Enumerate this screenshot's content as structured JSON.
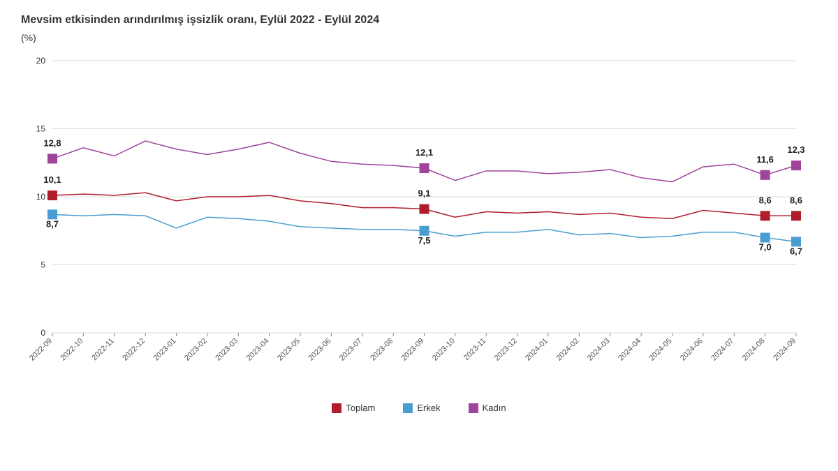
{
  "chart": {
    "type": "line",
    "title": "Mevsim etkisinden arındırılmış işsizlik oranı, Eylül 2022 - Eylül 2024",
    "unit": "(%)",
    "title_fontsize": 16,
    "title_color": "#333333",
    "unit_fontsize": 14,
    "background_color": "#ffffff",
    "grid_color": "#dddddd",
    "axis_color": "#888888",
    "xlabels": [
      "2022-09",
      "2022-10",
      "2022-11",
      "2022-12",
      "2023-01",
      "2023-02",
      "2023-03",
      "2023-04",
      "2023-05",
      "2023-06",
      "2023-07",
      "2023-08",
      "2023-09",
      "2023-10",
      "2023-11",
      "2023-12",
      "2024-01",
      "2024-02",
      "2024-03",
      "2024-04",
      "2024-05",
      "2024-06",
      "2024-07",
      "2024-08",
      "2024-09"
    ],
    "xlabel_fontsize": 11,
    "xlabel_rotation": -45,
    "ylim": [
      0,
      20
    ],
    "yticks": [
      0,
      5,
      10,
      15,
      20
    ],
    "ylabel_fontsize": 12,
    "line_width": 1.5,
    "marker_size": 14,
    "series": [
      {
        "name": "Toplam",
        "color": "#b01e2e",
        "values": [
          10.1,
          10.2,
          10.1,
          10.3,
          9.7,
          10.0,
          10.0,
          10.1,
          9.7,
          9.5,
          9.2,
          9.2,
          9.1,
          8.5,
          8.9,
          8.8,
          8.9,
          8.7,
          8.8,
          8.5,
          8.4,
          9.0,
          8.8,
          8.6,
          8.6
        ]
      },
      {
        "name": "Erkek",
        "color": "#4a9dd0",
        "values": [
          8.7,
          8.6,
          8.7,
          8.6,
          7.7,
          8.5,
          8.4,
          8.2,
          7.8,
          7.7,
          7.6,
          7.6,
          7.5,
          7.1,
          7.4,
          7.4,
          7.6,
          7.2,
          7.3,
          7.0,
          7.1,
          7.4,
          7.4,
          7.0,
          6.7
        ]
      },
      {
        "name": "Kadın",
        "color": "#a0439a",
        "values": [
          12.8,
          13.6,
          13.0,
          14.1,
          13.5,
          13.1,
          13.5,
          14.0,
          13.2,
          12.6,
          12.4,
          12.3,
          12.1,
          11.2,
          11.9,
          11.9,
          11.7,
          11.8,
          12.0,
          11.4,
          11.1,
          12.2,
          12.4,
          11.6,
          12.3
        ]
      }
    ],
    "annotations": [
      {
        "series": 0,
        "index": 0,
        "label": "10,1",
        "dy": -18
      },
      {
        "series": 1,
        "index": 0,
        "label": "8,7",
        "dy": 18
      },
      {
        "series": 2,
        "index": 0,
        "label": "12,8",
        "dy": -18
      },
      {
        "series": 0,
        "index": 12,
        "label": "9,1",
        "dy": -18
      },
      {
        "series": 1,
        "index": 12,
        "label": "7,5",
        "dy": 18
      },
      {
        "series": 2,
        "index": 12,
        "label": "12,1",
        "dy": -18
      },
      {
        "series": 0,
        "index": 23,
        "label": "8,6",
        "dy": -18
      },
      {
        "series": 1,
        "index": 23,
        "label": "7,0",
        "dy": 18
      },
      {
        "series": 2,
        "index": 23,
        "label": "11,6",
        "dy": -18
      },
      {
        "series": 0,
        "index": 24,
        "label": "8,6",
        "dy": -18
      },
      {
        "series": 1,
        "index": 24,
        "label": "6,7",
        "dy": 18
      },
      {
        "series": 2,
        "index": 24,
        "label": "12,3",
        "dy": -18
      }
    ],
    "annotation_fontsize": 13,
    "annotation_fontweight": "600",
    "legend_position": "bottom-center",
    "legend_fontsize": 13
  }
}
